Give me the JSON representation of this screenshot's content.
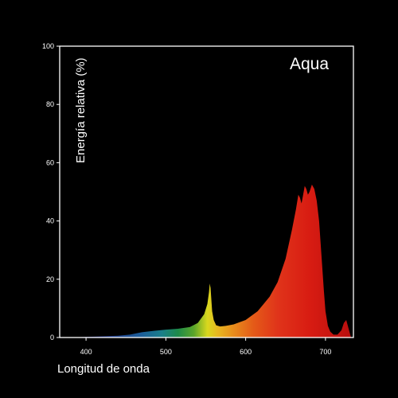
{
  "chart_data": {
    "type": "area",
    "title": "Aqua",
    "xlabel": "Longitud de onda",
    "ylabel": "Energía relativa (%)",
    "xlim": [
      367,
      735
    ],
    "ylim": [
      0,
      100
    ],
    "x_ticks": [
      400,
      500,
      600,
      700
    ],
    "y_ticks": [
      0,
      20,
      40,
      60,
      80,
      100
    ],
    "grid": false,
    "background": "#000000",
    "axis_color": "#ffffff",
    "fill": "spectral gradient (violet-blue to red)",
    "series": [
      {
        "x": [
          380,
          400,
          420,
          440,
          455,
          470,
          485,
          500,
          515,
          530,
          540,
          548,
          552,
          554,
          555,
          556,
          557,
          558,
          560,
          563,
          568,
          575,
          585,
          600,
          615,
          630,
          640,
          650,
          658,
          663,
          666,
          668,
          670,
          672,
          674,
          676,
          678,
          680,
          683,
          686,
          689,
          692,
          695,
          698,
          700,
          703,
          706,
          710,
          715,
          720,
          723,
          726,
          729,
          732
        ],
        "y": [
          0,
          0.2,
          0.4,
          0.6,
          1.0,
          1.8,
          2.3,
          2.7,
          3.0,
          3.6,
          5.0,
          8.0,
          11.5,
          15.5,
          18.5,
          17.0,
          13.0,
          9.0,
          6.0,
          4.2,
          3.8,
          4.0,
          4.5,
          6.0,
          9.0,
          14.0,
          19.0,
          27.0,
          37.0,
          44.0,
          49.0,
          48.0,
          46.0,
          49.0,
          52.0,
          51.0,
          49.0,
          50.0,
          52.5,
          51.0,
          47.0,
          40.0,
          28.0,
          16.0,
          9.0,
          4.0,
          2.0,
          1.0,
          1.0,
          2.5,
          5.0,
          6.0,
          3.0,
          0
        ]
      }
    ]
  }
}
